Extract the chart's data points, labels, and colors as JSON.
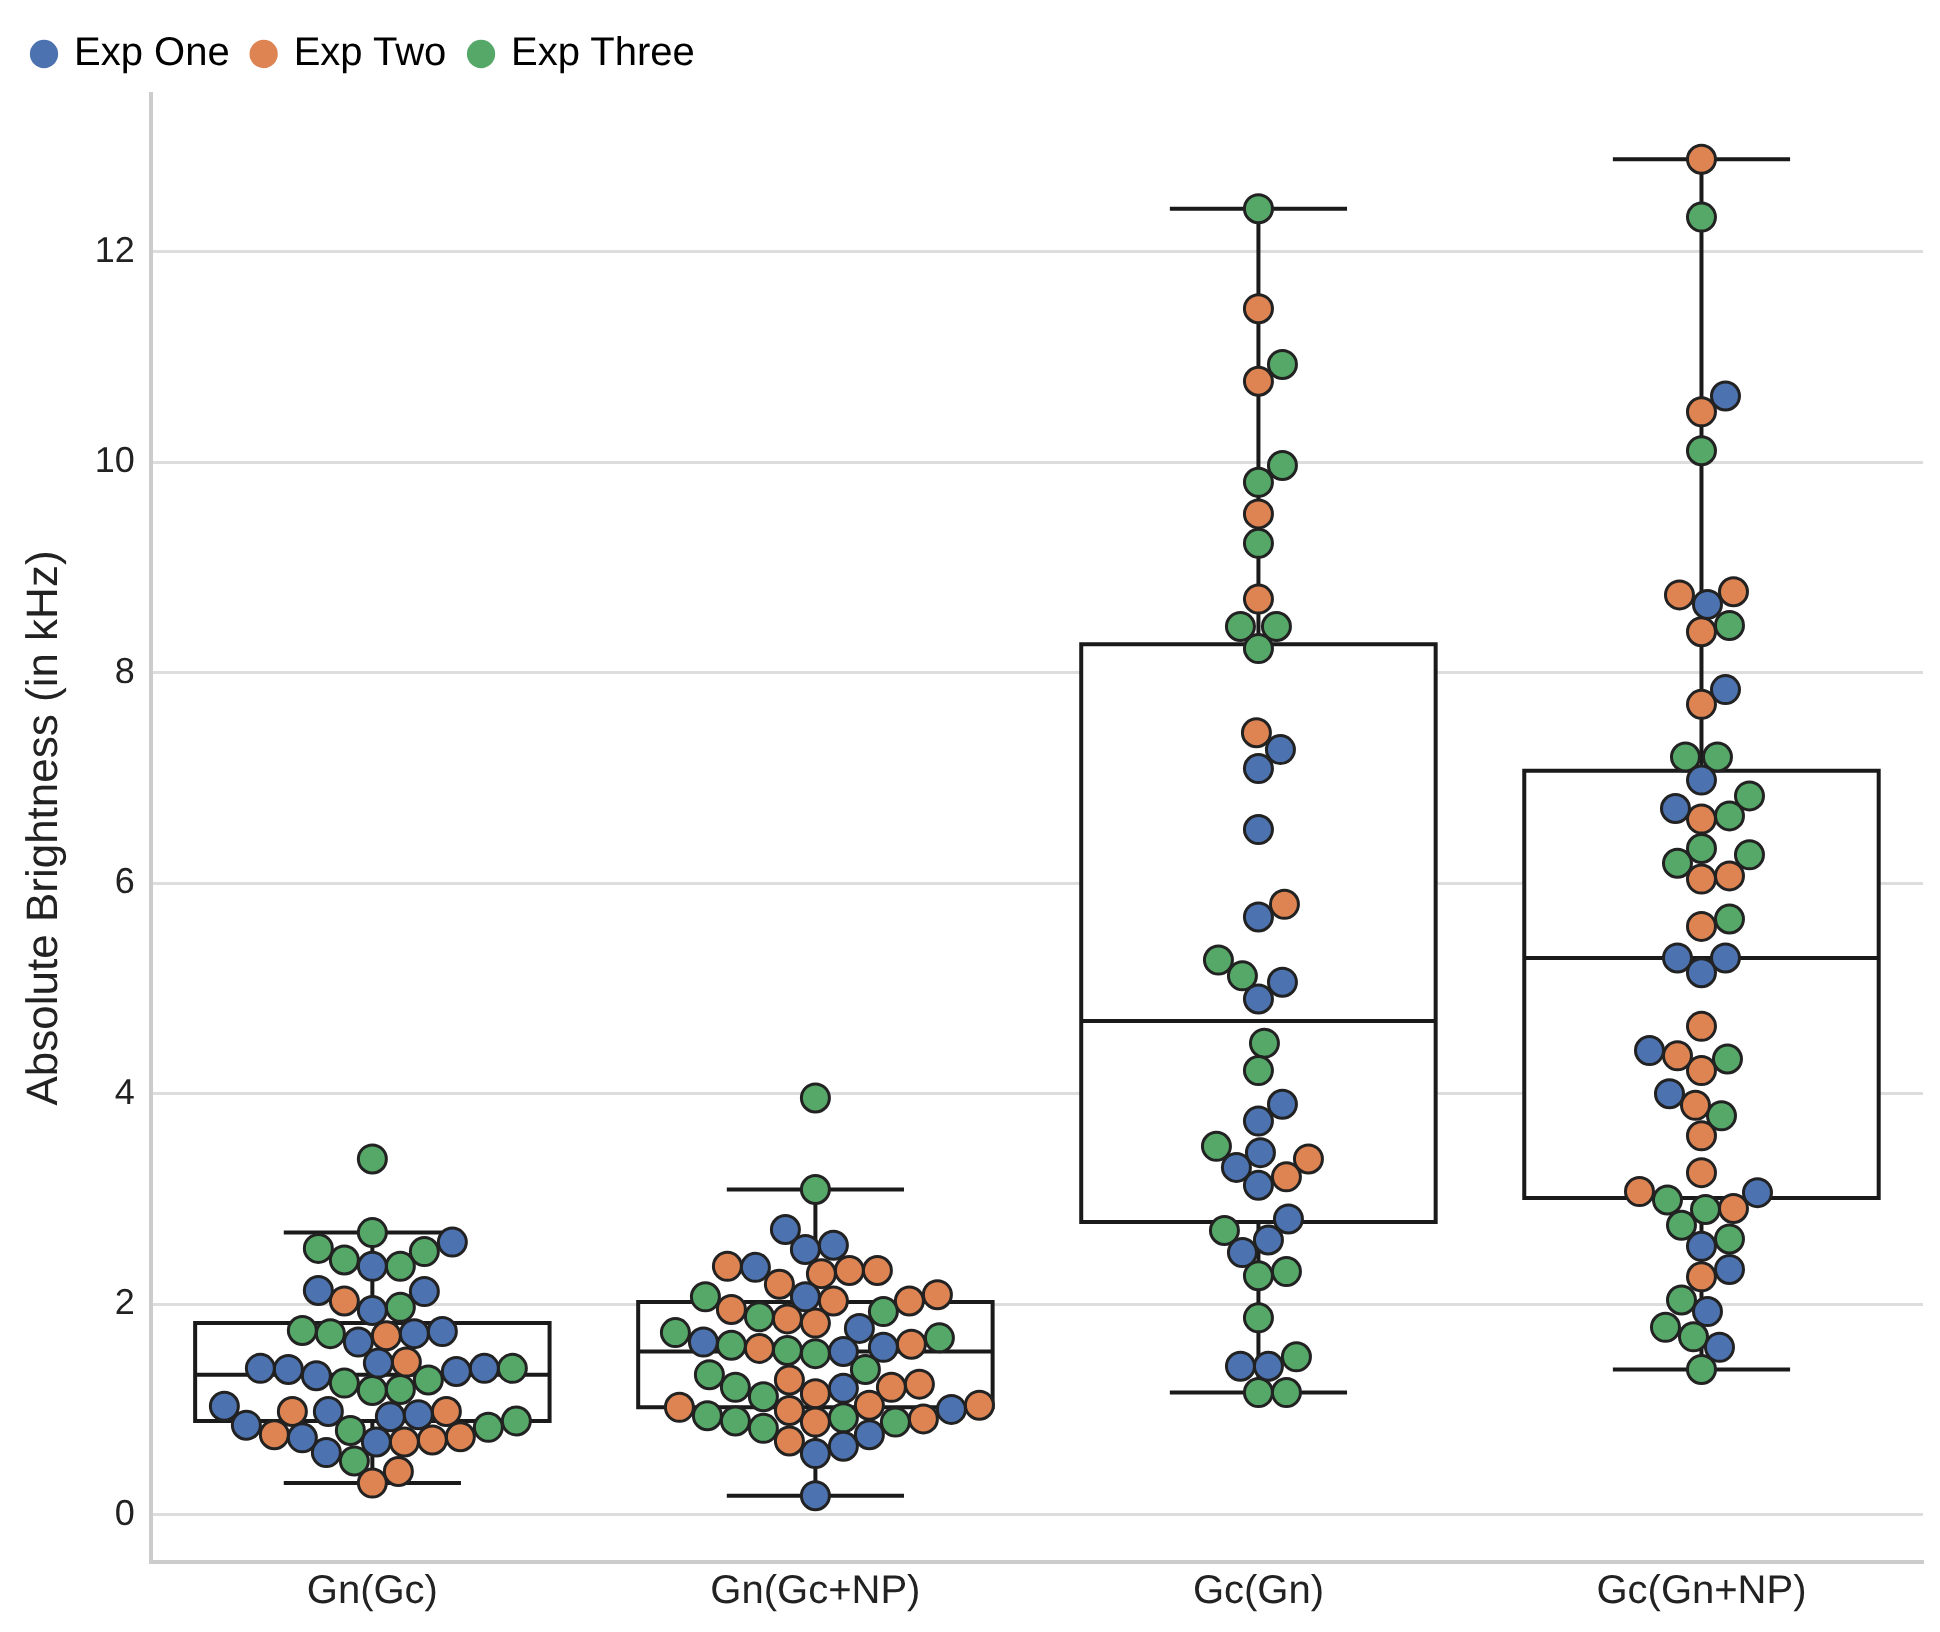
{
  "chart_data": {
    "type": "box",
    "ylabel": "Absolute Brightness (in kHz)",
    "categories": [
      "Gn(Gc)",
      "Gn(Gc+NP)",
      "Gc(Gn)",
      "Gc(Gn+NP)"
    ],
    "boxes": [
      {
        "low": 0.3,
        "q1": 0.89,
        "median": 1.33,
        "q3": 1.82,
        "high": 2.68
      },
      {
        "low": 0.18,
        "q1": 1.02,
        "median": 1.55,
        "q3": 2.02,
        "high": 3.09
      },
      {
        "low": 1.16,
        "q1": 2.78,
        "median": 4.69,
        "q3": 8.27,
        "high": 12.41
      },
      {
        "low": 1.38,
        "q1": 3.01,
        "median": 5.29,
        "q3": 7.07,
        "high": 12.88
      }
    ],
    "series": [
      {
        "name": "Exp One",
        "type": "scatter",
        "color": "#4c72b0",
        "x": [
          "Gn(Gc)",
          "Gn(Gc)",
          "Gn(Gc)",
          "Gn(Gc)",
          "Gn(Gc)",
          "Gn(Gc)",
          "Gn(Gc)",
          "Gn(Gc)",
          "Gn(Gc)",
          "Gn(Gc)",
          "Gn(Gc)",
          "Gn(Gc)",
          "Gn(Gc)",
          "Gn(Gc)",
          "Gn(Gc)",
          "Gn(Gc)",
          "Gn(Gc)",
          "Gn(Gc)",
          "Gn(Gc)",
          "Gn(Gc)",
          "Gn(Gc)",
          "Gn(Gc)",
          "Gn(Gc+NP)",
          "Gn(Gc+NP)",
          "Gn(Gc+NP)",
          "Gn(Gc+NP)",
          "Gn(Gc+NP)",
          "Gn(Gc+NP)",
          "Gn(Gc+NP)",
          "Gn(Gc+NP)",
          "Gn(Gc+NP)",
          "Gn(Gc+NP)",
          "Gn(Gc+NP)",
          "Gn(Gc+NP)",
          "Gn(Gc+NP)",
          "Gn(Gc+NP)",
          "Gn(Gc+NP)",
          "Gc(Gn)",
          "Gc(Gn)",
          "Gc(Gn)",
          "Gc(Gn)",
          "Gc(Gn)",
          "Gc(Gn)",
          "Gc(Gn)",
          "Gc(Gn)",
          "Gc(Gn)",
          "Gc(Gn)",
          "Gc(Gn)",
          "Gc(Gn)",
          "Gc(Gn)",
          "Gc(Gn)",
          "Gc(Gn)",
          "Gc(Gn)",
          "Gc(Gn+NP)",
          "Gc(Gn+NP)",
          "Gc(Gn+NP)",
          "Gc(Gn+NP)",
          "Gc(Gn+NP)",
          "Gc(Gn+NP)",
          "Gc(Gn+NP)",
          "Gc(Gn+NP)",
          "Gc(Gn+NP)",
          "Gc(Gn+NP)",
          "Gc(Gn+NP)",
          "Gc(Gn+NP)",
          "Gc(Gn+NP)",
          "Gc(Gn+NP)",
          "Gc(Gn+NP)"
        ],
        "values": [
          2.59,
          2.36,
          2.13,
          2.12,
          1.94,
          1.72,
          1.64,
          1.74,
          1.44,
          1.39,
          1.38,
          1.32,
          1.36,
          1.39,
          0.93,
          1.03,
          0.95,
          0.85,
          0.98,
          0.69,
          0.59,
          0.73,
          2.71,
          2.52,
          2.56,
          2.35,
          2.07,
          1.77,
          1.55,
          1.59,
          1.64,
          1.2,
          1.0,
          0.76,
          0.65,
          0.58,
          0.18,
          7.27,
          7.09,
          6.51,
          5.68,
          5.06,
          4.9,
          3.9,
          3.74,
          3.44,
          3.3,
          3.13,
          2.81,
          2.61,
          2.49,
          1.41,
          1.41,
          10.63,
          8.65,
          7.84,
          6.98,
          6.71,
          5.29,
          5.29,
          5.15,
          4.41,
          4.0,
          3.06,
          2.55,
          2.33,
          1.93,
          1.59
        ]
      },
      {
        "name": "Exp Two",
        "type": "scatter",
        "color": "#dd8452",
        "x": [
          "Gn(Gc)",
          "Gn(Gc)",
          "Gn(Gc)",
          "Gn(Gc)",
          "Gn(Gc)",
          "Gn(Gc)",
          "Gn(Gc)",
          "Gn(Gc)",
          "Gn(Gc)",
          "Gn(Gc)",
          "Gn(Gc)",
          "Gn(Gc+NP)",
          "Gn(Gc+NP)",
          "Gn(Gc+NP)",
          "Gn(Gc+NP)",
          "Gn(Gc+NP)",
          "Gn(Gc+NP)",
          "Gn(Gc+NP)",
          "Gn(Gc+NP)",
          "Gn(Gc+NP)",
          "Gn(Gc+NP)",
          "Gn(Gc+NP)",
          "Gn(Gc+NP)",
          "Gn(Gc+NP)",
          "Gn(Gc+NP)",
          "Gn(Gc+NP)",
          "Gn(Gc+NP)",
          "Gn(Gc+NP)",
          "Gn(Gc+NP)",
          "Gn(Gc+NP)",
          "Gn(Gc+NP)",
          "Gn(Gc+NP)",
          "Gn(Gc+NP)",
          "Gn(Gc+NP)",
          "Gn(Gc+NP)",
          "Gc(Gn)",
          "Gc(Gn)",
          "Gc(Gn)",
          "Gc(Gn)",
          "Gc(Gn)",
          "Gc(Gn)",
          "Gc(Gn)",
          "Gc(Gn)",
          "Gc(Gn+NP)",
          "Gc(Gn+NP)",
          "Gc(Gn+NP)",
          "Gc(Gn+NP)",
          "Gc(Gn+NP)",
          "Gc(Gn+NP)",
          "Gc(Gn+NP)",
          "Gc(Gn+NP)",
          "Gc(Gn+NP)",
          "Gc(Gn+NP)",
          "Gc(Gn+NP)",
          "Gc(Gn+NP)",
          "Gc(Gn+NP)",
          "Gc(Gn+NP)",
          "Gc(Gn+NP)",
          "Gc(Gn+NP)",
          "Gc(Gn+NP)",
          "Gc(Gn+NP)",
          "Gc(Gn+NP)"
        ],
        "values": [
          2.03,
          1.7,
          1.45,
          0.98,
          0.98,
          0.74,
          0.71,
          0.69,
          0.76,
          0.41,
          0.3,
          2.36,
          2.32,
          2.19,
          2.32,
          2.29,
          2.09,
          2.03,
          2.03,
          1.86,
          1.95,
          1.82,
          1.62,
          1.58,
          1.15,
          1.28,
          1.21,
          1.24,
          1.04,
          0.91,
          0.99,
          0.88,
          1.02,
          1.04,
          0.7,
          11.46,
          10.77,
          9.51,
          8.7,
          7.43,
          5.8,
          3.38,
          3.21,
          12.88,
          10.48,
          8.77,
          8.74,
          8.39,
          7.7,
          6.61,
          6.07,
          6.04,
          5.59,
          4.64,
          4.22,
          4.36,
          3.89,
          3.6,
          3.25,
          2.91,
          3.07,
          2.26
        ]
      },
      {
        "name": "Exp Three",
        "type": "scatter",
        "color": "#55a868",
        "x": [
          "Gn(Gc)",
          "Gn(Gc)",
          "Gn(Gc)",
          "Gn(Gc)",
          "Gn(Gc)",
          "Gn(Gc)",
          "Gn(Gc)",
          "Gn(Gc)",
          "Gn(Gc)",
          "Gn(Gc)",
          "Gn(Gc)",
          "Gn(Gc)",
          "Gn(Gc)",
          "Gn(Gc)",
          "Gn(Gc)",
          "Gn(Gc)",
          "Gn(Gc)",
          "Gn(Gc)",
          "Gn(Gc+NP)",
          "Gn(Gc+NP)",
          "Gn(Gc+NP)",
          "Gn(Gc+NP)",
          "Gn(Gc+NP)",
          "Gn(Gc+NP)",
          "Gn(Gc+NP)",
          "Gn(Gc+NP)",
          "Gn(Gc+NP)",
          "Gn(Gc+NP)",
          "Gn(Gc+NP)",
          "Gn(Gc+NP)",
          "Gn(Gc+NP)",
          "Gn(Gc+NP)",
          "Gn(Gc+NP)",
          "Gn(Gc+NP)",
          "Gn(Gc+NP)",
          "Gn(Gc+NP)",
          "Gn(Gc+NP)",
          "Gc(Gn)",
          "Gc(Gn)",
          "Gc(Gn)",
          "Gc(Gn)",
          "Gc(Gn)",
          "Gc(Gn)",
          "Gc(Gn)",
          "Gc(Gn)",
          "Gc(Gn)",
          "Gc(Gn)",
          "Gc(Gn)",
          "Gc(Gn)",
          "Gc(Gn)",
          "Gc(Gn)",
          "Gc(Gn)",
          "Gc(Gn)",
          "Gc(Gn)",
          "Gc(Gn)",
          "Gc(Gn)",
          "Gc(Gn)",
          "Gc(Gn+NP)",
          "Gc(Gn+NP)",
          "Gc(Gn+NP)",
          "Gc(Gn+NP)",
          "Gc(Gn+NP)",
          "Gc(Gn+NP)",
          "Gc(Gn+NP)",
          "Gc(Gn+NP)",
          "Gc(Gn+NP)",
          "Gc(Gn+NP)",
          "Gc(Gn+NP)",
          "Gc(Gn+NP)",
          "Gc(Gn+NP)",
          "Gc(Gn+NP)",
          "Gc(Gn+NP)",
          "Gc(Gn+NP)",
          "Gc(Gn+NP)",
          "Gc(Gn+NP)",
          "Gc(Gn+NP)",
          "Gc(Gn+NP)",
          "Gc(Gn+NP)"
        ],
        "values": [
          3.38,
          2.68,
          2.5,
          2.36,
          2.42,
          2.53,
          1.97,
          1.75,
          1.72,
          1.25,
          1.18,
          1.19,
          1.28,
          1.39,
          0.83,
          0.89,
          0.8,
          0.51,
          3.96,
          3.09,
          1.93,
          1.88,
          2.07,
          1.68,
          1.56,
          1.73,
          1.53,
          1.61,
          1.38,
          1.21,
          1.33,
          1.12,
          0.94,
          0.89,
          0.82,
          0.88,
          0.92,
          12.41,
          10.93,
          9.97,
          9.81,
          9.23,
          8.44,
          8.44,
          8.23,
          5.27,
          5.12,
          4.48,
          4.22,
          3.5,
          2.7,
          2.31,
          2.27,
          1.87,
          1.5,
          1.16,
          1.16,
          12.33,
          10.11,
          8.45,
          7.2,
          7.2,
          6.83,
          6.64,
          6.27,
          6.33,
          6.19,
          5.66,
          4.33,
          3.79,
          2.9,
          2.99,
          2.62,
          2.75,
          2.04,
          1.78,
          1.69,
          1.38
        ]
      }
    ],
    "ylim": [
      -0.45,
      13.5
    ],
    "yticks": [
      0,
      2,
      4,
      6,
      8,
      10,
      12
    ],
    "grid": "y",
    "legend": "top left",
    "marker": "circle"
  }
}
